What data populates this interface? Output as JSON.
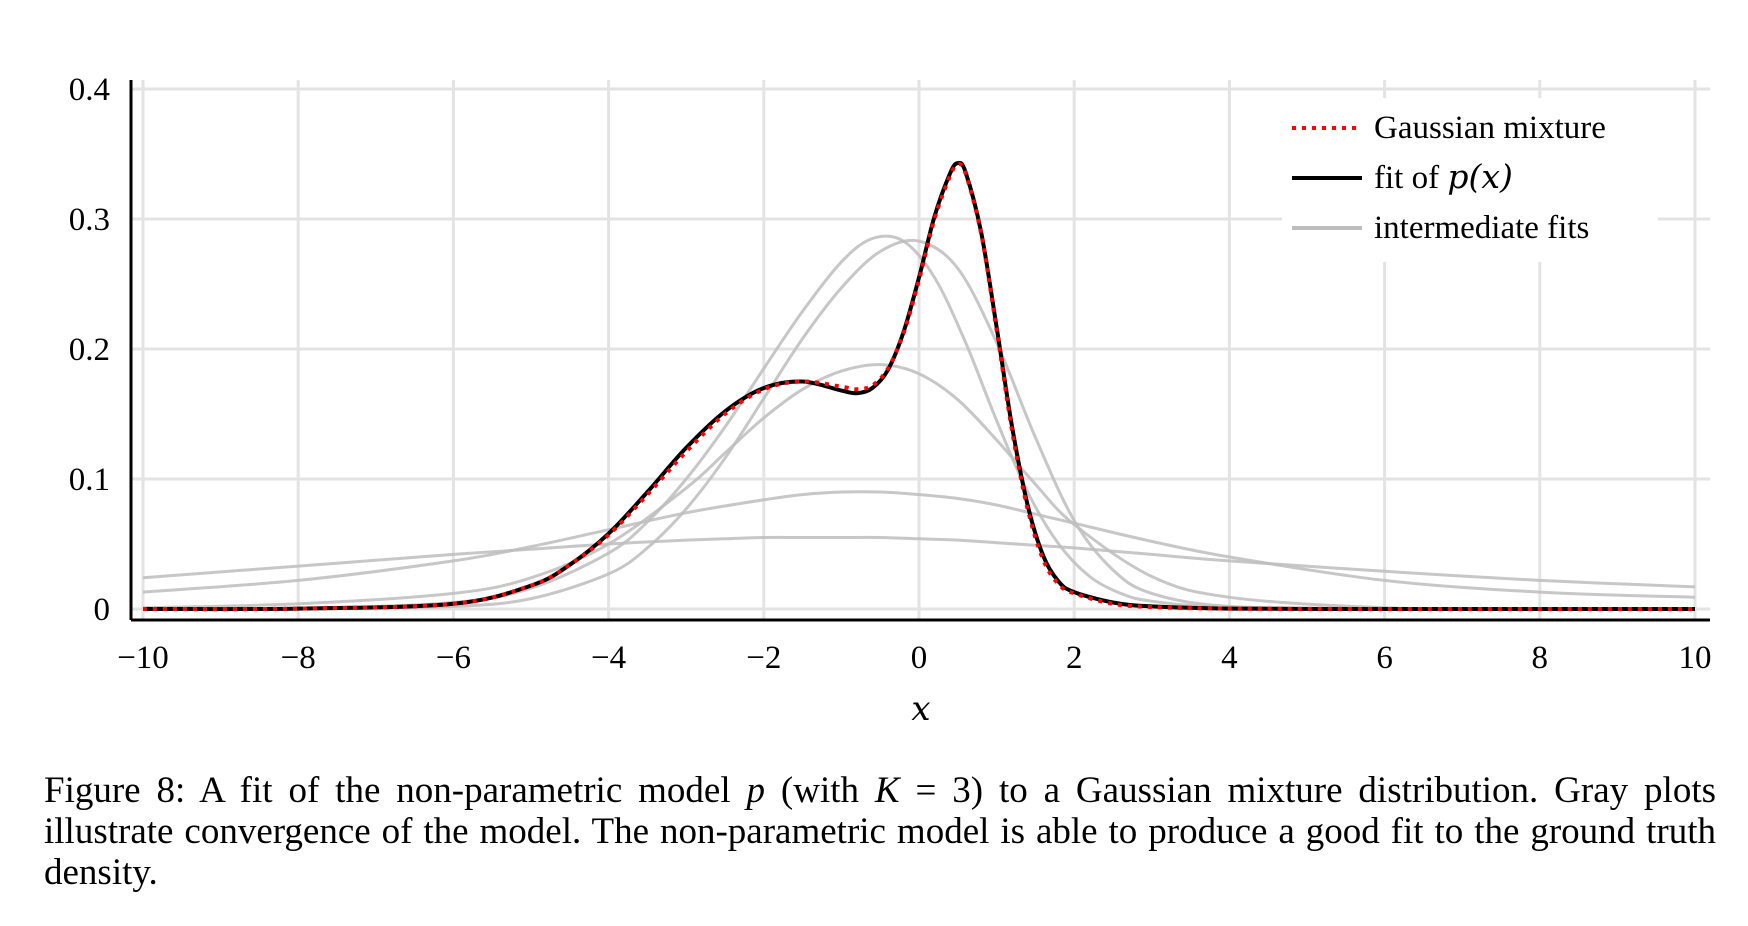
{
  "chart_data": {
    "type": "line",
    "xlabel": "x",
    "ylabel": "",
    "xlim": [
      -10,
      10
    ],
    "ylim": [
      0,
      0.4
    ],
    "xticks": [
      -10,
      -8,
      -6,
      -4,
      -2,
      0,
      2,
      4,
      6,
      8,
      10
    ],
    "xtick_labels": [
      "−10",
      "−8",
      "−6",
      "−4",
      "−2",
      "0",
      "2",
      "4",
      "6",
      "8",
      "10"
    ],
    "yticks": [
      0,
      0.1,
      0.2,
      0.3,
      0.4
    ],
    "ytick_labels": [
      "0",
      "0.1",
      "0.2",
      "0.3",
      "0.4"
    ],
    "grid": true,
    "legend_position": "top-right",
    "legend": [
      {
        "label": "Gaussian mixture",
        "style": "dotted",
        "color": "#ff0000"
      },
      {
        "label_prefix": "fit of ",
        "label_math": "p(x)",
        "style": "solid",
        "color": "#000000"
      },
      {
        "label": "intermediate fits",
        "style": "solid",
        "color": "#bdbdbd"
      }
    ],
    "series": [
      {
        "name": "Gaussian mixture",
        "color": "#ff0000",
        "x": [
          -10,
          -8,
          -6,
          -5,
          -4.5,
          -4,
          -3.5,
          -3,
          -2.5,
          -2,
          -1.5,
          -1,
          -0.8,
          -0.6,
          -0.4,
          -0.2,
          0,
          0.2,
          0.4,
          0.5,
          0.6,
          0.8,
          1,
          1.2,
          1.4,
          1.6,
          1.8,
          2,
          2.5,
          3,
          4,
          6,
          8,
          10
        ],
        "y": [
          0,
          0.0003,
          0.004,
          0.018,
          0.034,
          0.057,
          0.088,
          0.121,
          0.15,
          0.169,
          0.175,
          0.171,
          0.169,
          0.172,
          0.185,
          0.212,
          0.253,
          0.3,
          0.333,
          0.342,
          0.335,
          0.289,
          0.215,
          0.137,
          0.077,
          0.038,
          0.019,
          0.012,
          0.004,
          0.0015,
          0.0003,
          0,
          0,
          0
        ]
      },
      {
        "name": "fit of p(x)",
        "color": "#000000",
        "x": [
          -10,
          -8,
          -6,
          -5,
          -4.5,
          -4,
          -3.5,
          -3,
          -2.5,
          -2,
          -1.5,
          -1,
          -0.8,
          -0.6,
          -0.4,
          -0.2,
          0,
          0.2,
          0.4,
          0.5,
          0.6,
          0.8,
          1,
          1.2,
          1.4,
          1.6,
          1.8,
          2,
          2.5,
          3,
          4,
          6,
          8,
          10
        ],
        "y": [
          0,
          0.0003,
          0.004,
          0.018,
          0.034,
          0.058,
          0.09,
          0.124,
          0.152,
          0.17,
          0.175,
          0.168,
          0.166,
          0.17,
          0.184,
          0.213,
          0.255,
          0.302,
          0.335,
          0.343,
          0.336,
          0.29,
          0.217,
          0.14,
          0.08,
          0.041,
          0.021,
          0.013,
          0.005,
          0.002,
          0.0003,
          0,
          0,
          0
        ]
      },
      {
        "name": "intermediate fit 1",
        "color": "#bdbdbd",
        "x": [
          -10,
          -8,
          -6,
          -5,
          -4,
          -3,
          -2.5,
          -2,
          -1.5,
          -1,
          -0.5,
          0,
          0.5,
          1,
          1.5,
          2,
          3,
          4,
          6,
          8,
          10
        ],
        "y": [
          0.024,
          0.033,
          0.042,
          0.046,
          0.05,
          0.053,
          0.054,
          0.055,
          0.055,
          0.055,
          0.055,
          0.054,
          0.053,
          0.051,
          0.049,
          0.047,
          0.042,
          0.037,
          0.029,
          0.022,
          0.017
        ]
      },
      {
        "name": "intermediate fit 2",
        "color": "#bdbdbd",
        "x": [
          -10,
          -8,
          -6,
          -5,
          -4,
          -3,
          -2,
          -1.5,
          -1,
          -0.5,
          0,
          0.5,
          1,
          1.5,
          2,
          3,
          4,
          6,
          8,
          10
        ],
        "y": [
          0.013,
          0.022,
          0.037,
          0.048,
          0.061,
          0.074,
          0.084,
          0.088,
          0.09,
          0.09,
          0.088,
          0.085,
          0.08,
          0.073,
          0.066,
          0.052,
          0.04,
          0.022,
          0.013,
          0.009
        ]
      },
      {
        "name": "intermediate fit 3",
        "color": "#bdbdbd",
        "x": [
          -10,
          -8,
          -6,
          -5,
          -4,
          -3,
          -2.5,
          -2,
          -1.5,
          -1,
          -0.5,
          0,
          0.5,
          1,
          1.5,
          2,
          3,
          4,
          6,
          8,
          10
        ],
        "y": [
          0.001,
          0.004,
          0.012,
          0.024,
          0.05,
          0.093,
          0.12,
          0.147,
          0.169,
          0.183,
          0.188,
          0.181,
          0.161,
          0.13,
          0.096,
          0.065,
          0.025,
          0.009,
          0.001,
          0,
          0
        ]
      },
      {
        "name": "intermediate fit 4",
        "color": "#bdbdbd",
        "x": [
          -10,
          -8,
          -6,
          -5,
          -4,
          -3.5,
          -3,
          -2.5,
          -2,
          -1.5,
          -1,
          -0.6,
          -0.2,
          0.2,
          0.6,
          1,
          1.4,
          1.8,
          2.2,
          2.6,
          3,
          4,
          6,
          8,
          10
        ],
        "y": [
          0,
          0.0005,
          0.005,
          0.016,
          0.043,
          0.067,
          0.1,
          0.14,
          0.185,
          0.229,
          0.267,
          0.285,
          0.283,
          0.255,
          0.205,
          0.145,
          0.09,
          0.05,
          0.025,
          0.012,
          0.006,
          0.001,
          0,
          0,
          0
        ]
      },
      {
        "name": "intermediate fit 5",
        "color": "#bdbdbd",
        "x": [
          -10,
          -8,
          -6,
          -5,
          -4,
          -3.5,
          -3,
          -2.5,
          -2,
          -1.5,
          -1,
          -0.5,
          0,
          0.5,
          1,
          1.5,
          2,
          2.5,
          3,
          4,
          6,
          8,
          10
        ],
        "y": [
          0,
          0.0002,
          0.002,
          0.008,
          0.027,
          0.047,
          0.077,
          0.116,
          0.162,
          0.208,
          0.247,
          0.275,
          0.283,
          0.262,
          0.205,
          0.132,
          0.068,
          0.03,
          0.012,
          0.002,
          0,
          0,
          0
        ]
      }
    ]
  },
  "caption": {
    "lead": "Figure 8: A fit of the non-parametric model ",
    "m1": "p",
    "part2": " (with ",
    "m2": "K",
    "part3": " = 3) to a Gaussian mixture distribution. Gray plots illustrate convergence of the model. The non-parametric model is able to produce a good fit to the ground truth density."
  }
}
